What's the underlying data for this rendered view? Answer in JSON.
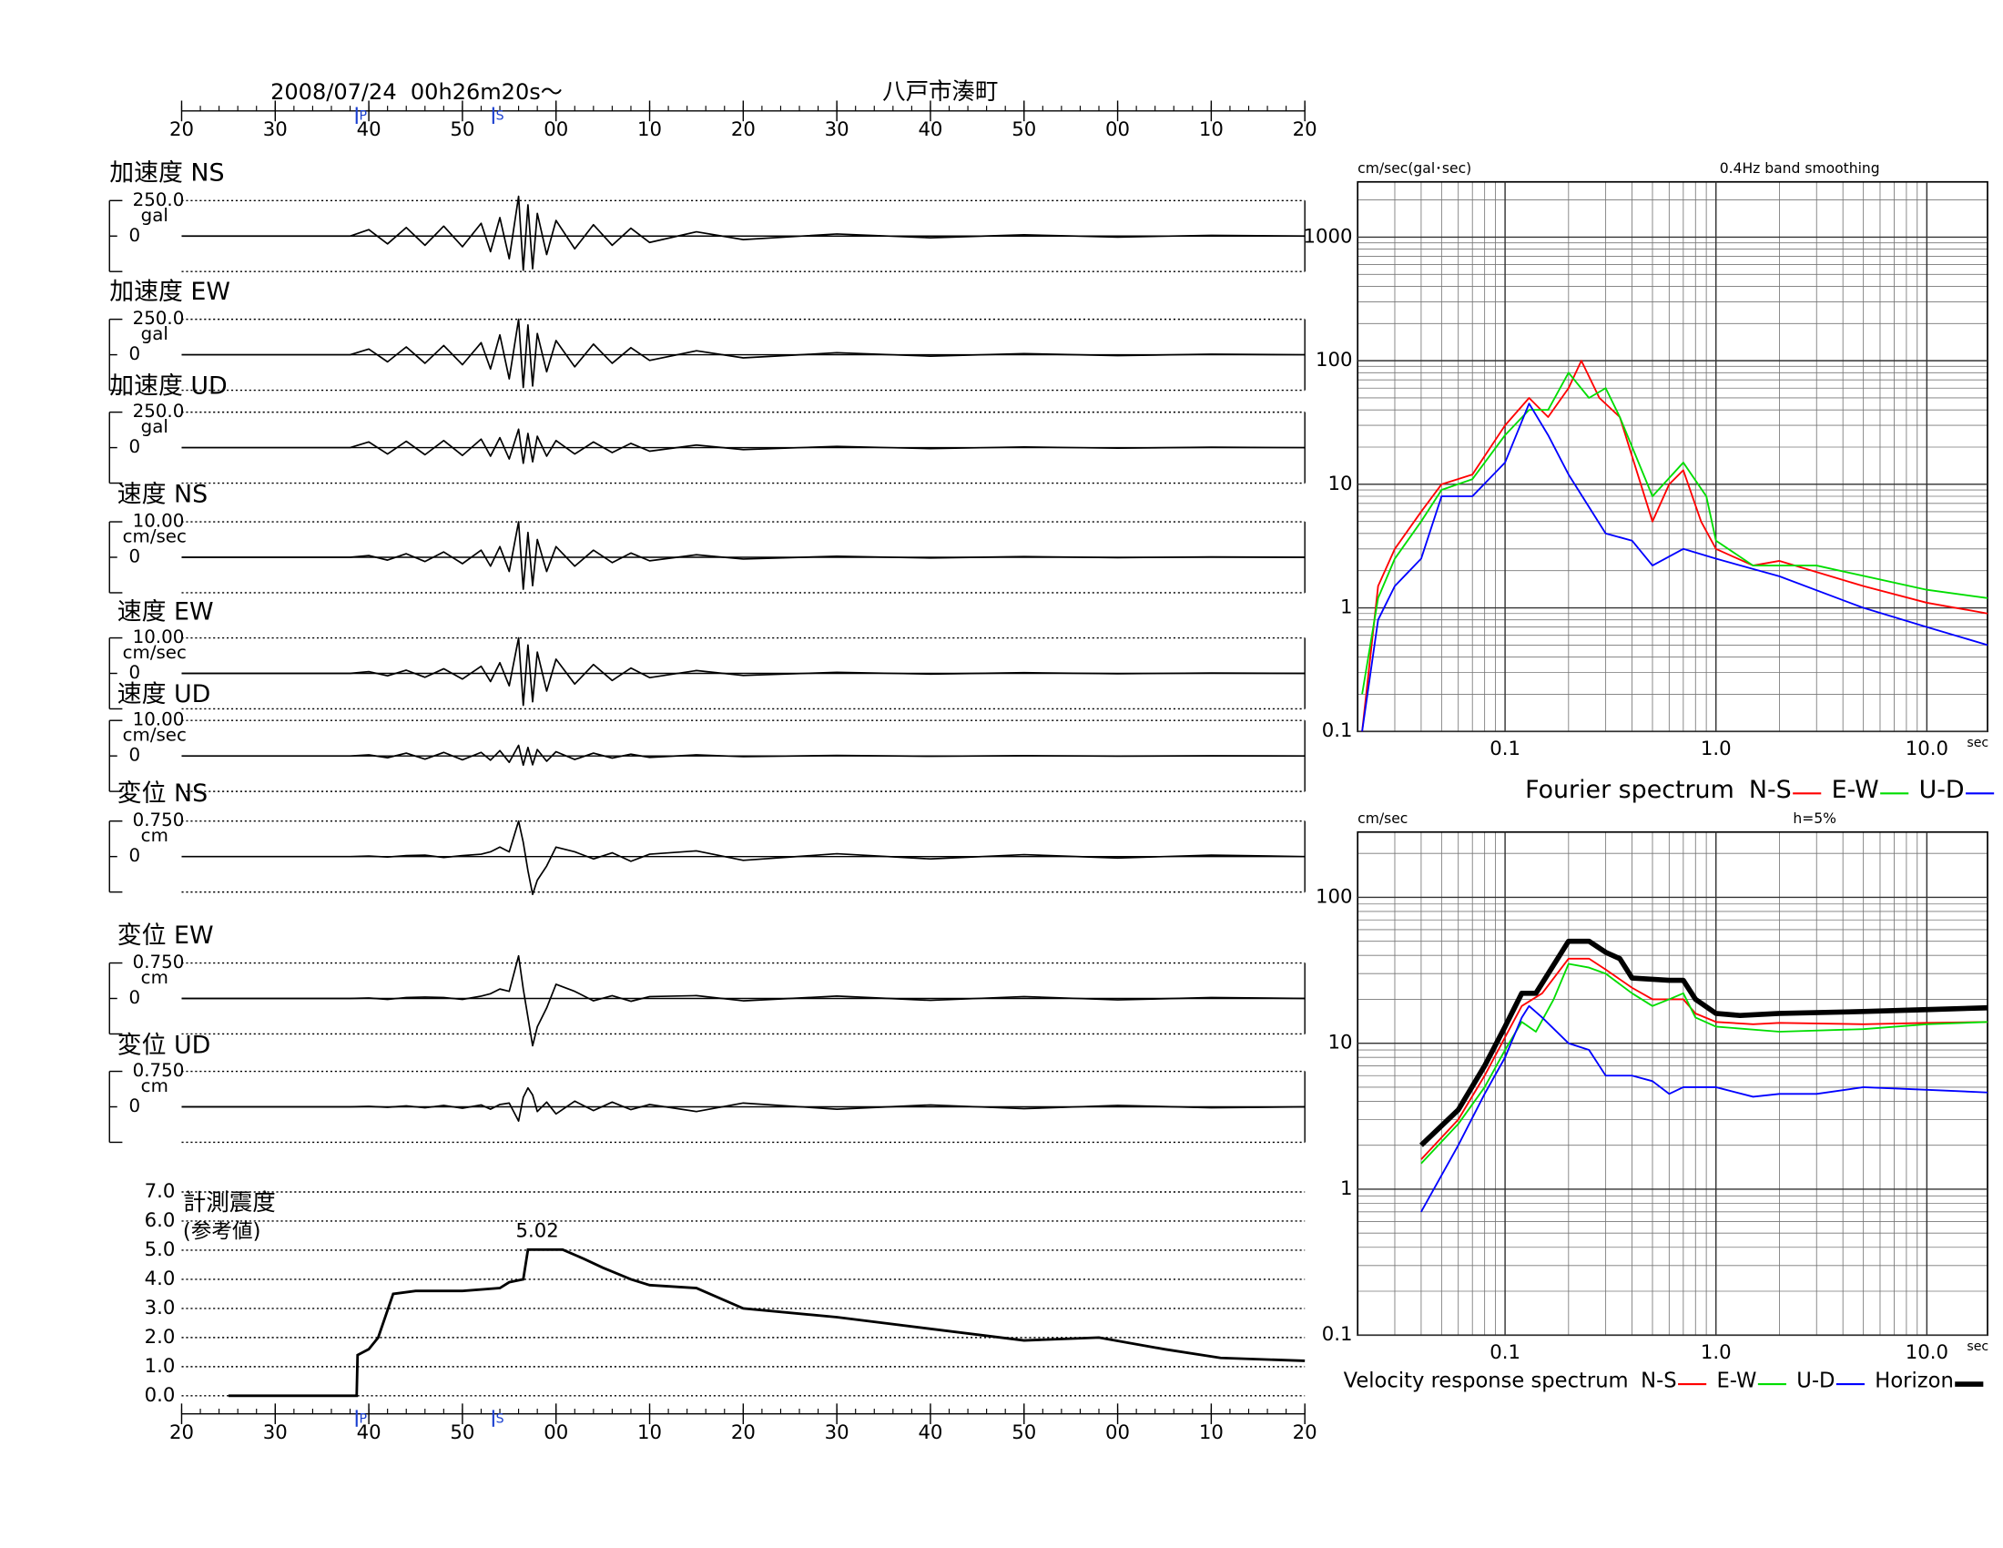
{
  "header": {
    "datetime": "2008/07/24  00h26m20s～",
    "station": "八戸市湊町"
  },
  "chart_data": [
    {
      "type": "waveform",
      "xlim": [
        0,
        120
      ],
      "xticks": [
        {
          "value": 0,
          "label": "20"
        },
        {
          "value": 10,
          "label": "30"
        },
        {
          "value": 20,
          "label": "40"
        },
        {
          "value": 30,
          "label": "50"
        },
        {
          "value": 40,
          "label": "00"
        },
        {
          "value": 50,
          "label": "10"
        },
        {
          "value": 60,
          "label": "20"
        },
        {
          "value": 70,
          "label": "30"
        },
        {
          "value": 80,
          "label": "40"
        },
        {
          "value": 90,
          "label": "50"
        },
        {
          "value": 100,
          "label": "00"
        },
        {
          "value": 110,
          "label": "10"
        },
        {
          "value": 120,
          "label": "20"
        }
      ],
      "markers": [
        {
          "label": "P",
          "x": 18.7
        },
        {
          "label": "S",
          "x": 33.3
        }
      ],
      "x": [
        0,
        18,
        20,
        22,
        24,
        26,
        28,
        30,
        32,
        33,
        34,
        35,
        36,
        36.5,
        37,
        37.5,
        38,
        39,
        40,
        42,
        44,
        46,
        48,
        50,
        55,
        60,
        70,
        80,
        90,
        100,
        110,
        120
      ],
      "series": [
        {
          "name": "加速度 NS",
          "unit": "gal",
          "color": "#000000",
          "ylim": [
            -250,
            250
          ],
          "yticks": [
            {
              "value": 250,
              "label": "250.0"
            },
            0
          ],
          "values": [
            0,
            0,
            45,
            -55,
            60,
            -65,
            70,
            -75,
            90,
            -110,
            130,
            -160,
            280,
            -240,
            220,
            -230,
            160,
            -130,
            110,
            -90,
            80,
            -65,
            55,
            -45,
            30,
            -25,
            15,
            -12,
            9,
            -7,
            5,
            0
          ]
        },
        {
          "name": "加速度 EW",
          "unit": "gal",
          "color": "#000000",
          "ylim": [
            -250,
            250
          ],
          "yticks": [
            {
              "value": 250,
              "label": "250.0"
            },
            0
          ],
          "values": [
            0,
            0,
            40,
            -50,
            55,
            -60,
            65,
            -70,
            85,
            -100,
            140,
            -170,
            250,
            -230,
            210,
            -220,
            150,
            -120,
            100,
            -85,
            75,
            -60,
            50,
            -40,
            28,
            -22,
            14,
            -10,
            8,
            -6,
            4,
            0
          ]
        },
        {
          "name": "加速度 UD",
          "unit": "gal",
          "color": "#000000",
          "ylim": [
            -250,
            250
          ],
          "yticks": [
            {
              "value": 250,
              "label": "250.0"
            },
            0
          ],
          "values": [
            0,
            0,
            40,
            -45,
            45,
            -50,
            50,
            -55,
            60,
            -60,
            70,
            -80,
            130,
            -110,
            100,
            -100,
            80,
            -60,
            50,
            -45,
            40,
            -35,
            30,
            -25,
            18,
            -14,
            9,
            -7,
            5,
            -4,
            3,
            0
          ]
        },
        {
          "name": "速度 NS",
          "unit": "cm/sec",
          "color": "#000000",
          "ylim": [
            -10,
            10
          ],
          "yticks": [
            {
              "value": 10,
              "label": "10.00"
            },
            0
          ],
          "values": [
            0,
            0,
            0.5,
            -0.8,
            1,
            -1.2,
            1.5,
            -1.8,
            2,
            -2.5,
            3,
            -4,
            10,
            -9,
            7,
            -8,
            5,
            -4,
            3,
            -2.5,
            2,
            -1.5,
            1.2,
            -1,
            0.7,
            -0.5,
            0.3,
            -0.2,
            0.2,
            -0.1,
            0.1,
            0
          ]
        },
        {
          "name": "速度 EW",
          "unit": "cm/sec",
          "color": "#000000",
          "ylim": [
            -10,
            10
          ],
          "yticks": [
            {
              "value": 10,
              "label": "10.00"
            },
            0
          ],
          "values": [
            0,
            0,
            0.5,
            -0.7,
            0.9,
            -1.1,
            1.3,
            -1.6,
            2,
            -2.3,
            3,
            -3.5,
            10,
            -9,
            8,
            -8,
            6,
            -5,
            4,
            -3,
            2.5,
            -2,
            1.5,
            -1.2,
            0.8,
            -0.6,
            0.3,
            -0.2,
            0.2,
            -0.1,
            0.1,
            0
          ]
        },
        {
          "name": "速度 UD",
          "unit": "cm/sec",
          "color": "#000000",
          "ylim": [
            -10,
            10
          ],
          "yticks": [
            {
              "value": 10,
              "label": "10.00"
            },
            0
          ],
          "values": [
            0,
            0,
            0.3,
            -0.5,
            0.8,
            -0.9,
            1,
            -1.1,
            1,
            -1.2,
            1.5,
            -1.8,
            3,
            -2.6,
            2.4,
            -2.5,
            1.8,
            -1.5,
            1.2,
            -1,
            0.8,
            -0.6,
            0.5,
            -0.4,
            0.3,
            -0.2,
            0.15,
            -0.1,
            0.08,
            -0.05,
            0.04,
            0
          ]
        },
        {
          "name": "変位 NS",
          "unit": "cm",
          "color": "#000000",
          "ylim": [
            -0.75,
            0.75
          ],
          "yticks": [
            {
              "value": 0.75,
              "label": "0.750"
            },
            0
          ],
          "values": [
            0,
            0,
            0.01,
            -0.01,
            0.02,
            0.03,
            -0.02,
            0.02,
            0.05,
            0.1,
            0.2,
            0.1,
            0.75,
            0.3,
            -0.3,
            -0.8,
            -0.5,
            -0.2,
            0.2,
            0.1,
            -0.05,
            0.08,
            -0.1,
            0.05,
            0.12,
            -0.08,
            0.06,
            -0.05,
            0.04,
            -0.03,
            0.03,
            0
          ]
        },
        {
          "name": "変位 EW",
          "unit": "cm",
          "color": "#000000",
          "ylim": [
            -0.75,
            0.75
          ],
          "yticks": [
            {
              "value": 0.75,
              "label": "0.750"
            },
            0
          ],
          "values": [
            0,
            0,
            0.01,
            -0.02,
            0.02,
            0.03,
            0.02,
            -0.02,
            0.05,
            0.1,
            0.2,
            0.15,
            0.9,
            0.2,
            -0.4,
            -1.0,
            -0.6,
            -0.2,
            0.3,
            0.15,
            -0.05,
            0.06,
            -0.06,
            0.04,
            0.06,
            -0.05,
            0.05,
            -0.04,
            0.04,
            -0.03,
            0.02,
            0
          ]
        },
        {
          "name": "変位 UD",
          "unit": "cm",
          "color": "#000000",
          "ylim": [
            -0.75,
            0.75
          ],
          "yticks": [
            {
              "value": 0.75,
              "label": "0.750"
            },
            0
          ],
          "values": [
            0,
            0,
            0.01,
            -0.01,
            0.02,
            -0.02,
            0.03,
            -0.03,
            0.04,
            -0.05,
            0.05,
            0.08,
            -0.3,
            0.2,
            0.4,
            0.25,
            -0.1,
            0.1,
            -0.15,
            0.12,
            -0.08,
            0.1,
            -0.06,
            0.05,
            -0.1,
            0.08,
            -0.05,
            0.04,
            -0.04,
            0.03,
            -0.02,
            0
          ]
        }
      ]
    },
    {
      "type": "intensity",
      "title": "計測震度",
      "subtitle": "(参考値)",
      "xlim": [
        0,
        120
      ],
      "xticks": [
        {
          "value": 0,
          "label": "20"
        },
        {
          "value": 10,
          "label": "30"
        },
        {
          "value": 20,
          "label": "40"
        },
        {
          "value": 30,
          "label": "50"
        },
        {
          "value": 40,
          "label": "00"
        },
        {
          "value": 50,
          "label": "10"
        },
        {
          "value": 60,
          "label": "20"
        },
        {
          "value": 70,
          "label": "30"
        },
        {
          "value": 80,
          "label": "40"
        },
        {
          "value": 90,
          "label": "50"
        },
        {
          "value": 100,
          "label": "00"
        },
        {
          "value": 110,
          "label": "10"
        },
        {
          "value": 120,
          "label": "20"
        }
      ],
      "markers": [
        {
          "label": "P",
          "x": 18.7
        },
        {
          "label": "S",
          "x": 33.3
        }
      ],
      "ylim": [
        0,
        7
      ],
      "yticks": [
        {
          "value": 0,
          "label": "0.0"
        },
        {
          "value": 1,
          "label": "1.0"
        },
        {
          "value": 2,
          "label": "2.0"
        },
        {
          "value": 3,
          "label": "3.0"
        },
        {
          "value": 4,
          "label": "4.0"
        },
        {
          "value": 5,
          "label": "5.0"
        },
        {
          "value": 6,
          "label": "6.0"
        },
        {
          "value": 7,
          "label": "7.0"
        }
      ],
      "grid": true,
      "color": "#000000",
      "x": [
        5,
        18.7,
        18.8,
        20,
        21,
        22.6,
        25,
        30,
        34,
        35,
        36.5,
        37,
        40.7,
        43,
        45,
        48,
        50,
        55,
        60,
        70,
        80,
        90,
        98,
        105,
        111,
        120
      ],
      "values": [
        0,
        0,
        1.4,
        1.6,
        2,
        3.5,
        3.6,
        3.6,
        3.7,
        3.9,
        4.0,
        5.02,
        5.02,
        4.7,
        4.4,
        4.0,
        3.8,
        3.7,
        3.0,
        2.7,
        2.3,
        1.9,
        2.0,
        1.6,
        1.3,
        1.2
      ],
      "peak": 5.02,
      "peak_x": 38
    },
    {
      "type": "log-line",
      "ylabel": "cm/sec(gal･sec)",
      "note": "0.4Hz band smoothing",
      "xlabel": "sec",
      "legend_title": "Fourier spectrum",
      "xscale": "log",
      "yscale": "log",
      "grid": true,
      "xlim": [
        0.02,
        19.4
      ],
      "ylim": [
        0.1,
        2800
      ],
      "xticks": [
        0.1,
        {
          "value": 1,
          "label": "1.0"
        },
        {
          "value": 10,
          "label": "10.0"
        }
      ],
      "yticks": [
        0.1,
        1,
        10,
        100,
        1000
      ],
      "series": [
        {
          "name": "N-S",
          "color": "#ff0000",
          "x": [
            0.021,
            0.025,
            0.03,
            0.04,
            0.05,
            0.07,
            0.1,
            0.13,
            0.16,
            0.2,
            0.23,
            0.28,
            0.35,
            0.5,
            0.6,
            0.7,
            0.85,
            1.0,
            1.5,
            2,
            5,
            10,
            19.4
          ],
          "values": [
            0.1,
            1.5,
            3,
            6,
            10,
            12,
            30,
            50,
            35,
            60,
            100,
            50,
            35,
            5,
            10,
            13,
            5,
            3,
            2.2,
            2.4,
            1.5,
            1.1,
            0.9
          ]
        },
        {
          "name": "E-W",
          "color": "#00dd00",
          "x": [
            0.021,
            0.025,
            0.03,
            0.04,
            0.05,
            0.07,
            0.1,
            0.13,
            0.16,
            0.2,
            0.25,
            0.3,
            0.35,
            0.5,
            0.7,
            0.9,
            1.0,
            1.5,
            3,
            10,
            19.4
          ],
          "values": [
            0.2,
            1.2,
            2.5,
            5,
            9,
            11,
            25,
            40,
            40,
            80,
            50,
            60,
            35,
            8,
            15,
            8,
            3.5,
            2.2,
            2.2,
            1.4,
            1.2
          ]
        },
        {
          "name": "U-D",
          "color": "#0000ff",
          "x": [
            0.021,
            0.025,
            0.03,
            0.04,
            0.05,
            0.07,
            0.1,
            0.13,
            0.16,
            0.2,
            0.3,
            0.4,
            0.5,
            0.7,
            1,
            2,
            5,
            10,
            19.4
          ],
          "values": [
            0.1,
            0.8,
            1.5,
            2.5,
            8,
            8,
            15,
            45,
            25,
            12,
            4,
            3.5,
            2.2,
            3,
            2.5,
            1.8,
            1,
            0.7,
            0.5
          ]
        }
      ]
    },
    {
      "type": "log-line",
      "ylabel": "cm/sec",
      "note": "h=5%",
      "xlabel": "sec",
      "legend_title": "Velocity response spectrum",
      "xscale": "log",
      "yscale": "log",
      "grid": true,
      "xlim": [
        0.02,
        19.4
      ],
      "ylim": [
        0.1,
        280
      ],
      "xticks": [
        0.1,
        {
          "value": 1,
          "label": "1.0"
        },
        {
          "value": 10,
          "label": "10.0"
        }
      ],
      "yticks": [
        0.1,
        1,
        10,
        100
      ],
      "series": [
        {
          "name": "N-S",
          "color": "#ff0000",
          "x": [
            0.04,
            0.06,
            0.08,
            0.1,
            0.12,
            0.15,
            0.2,
            0.25,
            0.3,
            0.4,
            0.5,
            0.6,
            0.7,
            0.8,
            1,
            1.5,
            2,
            5,
            10,
            19.4
          ],
          "values": [
            1.6,
            3,
            6,
            11,
            18,
            22,
            38,
            38,
            32,
            24,
            20,
            20,
            20,
            16,
            14,
            13.5,
            13.8,
            13.5,
            13.8,
            14
          ]
        },
        {
          "name": "E-W",
          "color": "#00dd00",
          "x": [
            0.04,
            0.06,
            0.08,
            0.1,
            0.12,
            0.14,
            0.17,
            0.2,
            0.25,
            0.3,
            0.4,
            0.5,
            0.6,
            0.7,
            0.8,
            1,
            2,
            5,
            10,
            19.4
          ],
          "values": [
            1.5,
            2.8,
            5,
            9,
            14,
            12,
            20,
            35,
            33,
            30,
            22,
            18,
            20,
            22,
            15,
            13,
            12,
            12.5,
            13.5,
            14
          ]
        },
        {
          "name": "U-D",
          "color": "#0000ff",
          "x": [
            0.04,
            0.06,
            0.08,
            0.1,
            0.12,
            0.13,
            0.15,
            0.2,
            0.25,
            0.3,
            0.4,
            0.5,
            0.6,
            0.7,
            1,
            1.5,
            2,
            3,
            5,
            10,
            19.4
          ],
          "values": [
            0.7,
            2,
            4.5,
            8,
            15,
            18,
            15,
            10,
            9,
            6,
            6,
            5.5,
            4.5,
            5,
            5,
            4.3,
            4.5,
            4.5,
            5,
            4.8,
            4.6
          ]
        },
        {
          "name": "Horizon",
          "color": "#000000",
          "linewidth": 4,
          "x": [
            0.04,
            0.06,
            0.08,
            0.1,
            0.12,
            0.14,
            0.2,
            0.25,
            0.3,
            0.35,
            0.4,
            0.6,
            0.7,
            0.8,
            1,
            1.3,
            2,
            5,
            10,
            19.4
          ],
          "values": [
            2,
            3.5,
            7,
            13,
            22,
            22,
            50,
            50,
            42,
            38,
            28,
            27,
            27,
            20,
            16,
            15.5,
            16,
            16.5,
            17,
            17.5
          ]
        }
      ]
    }
  ]
}
